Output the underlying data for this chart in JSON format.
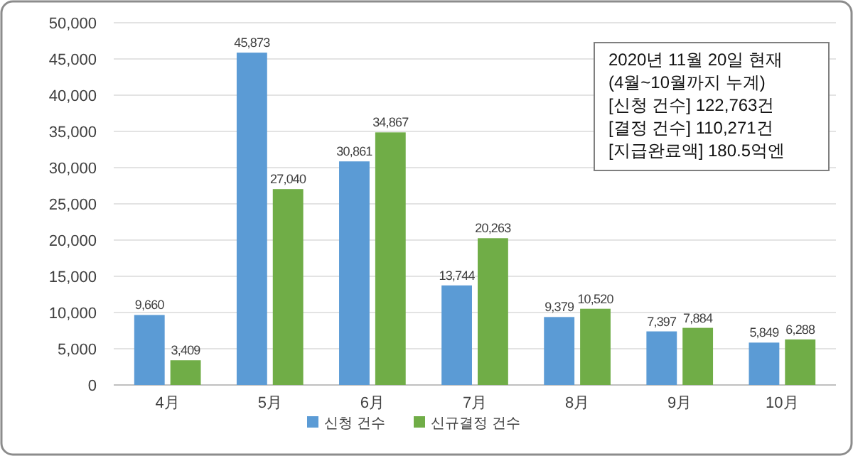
{
  "chart_data": {
    "type": "bar",
    "categories": [
      "4月",
      "5月",
      "6月",
      "7月",
      "8月",
      "9月",
      "10月"
    ],
    "series": [
      {
        "name": "신청 건수",
        "color": "#5b9bd5",
        "values": [
          9660,
          45873,
          30861,
          13744,
          9379,
          7397,
          5849
        ],
        "value_labels": [
          "9,660",
          "45,873",
          "30,861",
          "13,744",
          "9,379",
          "7,397",
          "5,849"
        ]
      },
      {
        "name": "신규결정 건수",
        "color": "#70ad47",
        "values": [
          3409,
          27040,
          34867,
          20263,
          10520,
          7884,
          6288
        ],
        "value_labels": [
          "3,409",
          "27,040",
          "34,867",
          "20,263",
          "10,520",
          "7,884",
          "6,288"
        ]
      }
    ],
    "ylim": [
      0,
      50000
    ],
    "yticks": [
      {
        "value": 0,
        "label": "0"
      },
      {
        "value": 5000,
        "label": "5,000"
      },
      {
        "value": 10000,
        "label": "10,000"
      },
      {
        "value": 15000,
        "label": "15,000"
      },
      {
        "value": 20000,
        "label": "20,000"
      },
      {
        "value": 25000,
        "label": "25,000"
      },
      {
        "value": 30000,
        "label": "30,000"
      },
      {
        "value": 35000,
        "label": "35,000"
      },
      {
        "value": 40000,
        "label": "40,000"
      },
      {
        "value": 45000,
        "label": "45,000"
      },
      {
        "value": 50000,
        "label": "50,000"
      }
    ],
    "grid": "y",
    "legend": "bottom",
    "annotations": [
      "2020년 11월 20일 현재",
      "(4월~10월까지 누계)",
      "[신청 건수] 122,763건",
      "[결정 건수] 110,271건",
      "[지급완료액] 180.5억엔"
    ]
  }
}
